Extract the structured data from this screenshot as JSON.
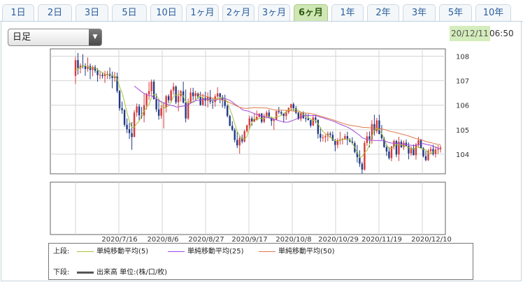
{
  "tabs": [
    {
      "label": "1日",
      "active": false
    },
    {
      "label": "2日",
      "active": false
    },
    {
      "label": "3日",
      "active": false
    },
    {
      "label": "5日",
      "active": false
    },
    {
      "label": "10日",
      "active": false
    },
    {
      "label": "1ヶ月",
      "active": false
    },
    {
      "label": "2ヶ月",
      "active": false
    },
    {
      "label": "3ヶ月",
      "active": false
    },
    {
      "label": "6ヶ月",
      "active": true
    },
    {
      "label": "1年",
      "active": false
    },
    {
      "label": "2年",
      "active": false
    },
    {
      "label": "3年",
      "active": false
    },
    {
      "label": "5年",
      "active": false
    },
    {
      "label": "10年",
      "active": false
    }
  ],
  "period_select": {
    "value": "日足"
  },
  "timestamp": {
    "date": "20/12/11",
    "time": "06:50"
  },
  "legend": {
    "upper_label": "上段:",
    "lower_label": "下段:",
    "ma5": "単純移動平均(5)",
    "ma25": "単純移動平均(25)",
    "ma50": "単純移動平均(50)",
    "volume": "出来高 単位:(株/口/枚)"
  },
  "colors": {
    "up": "#d83a3a",
    "down": "#1f3a86",
    "ma5": "#a8c23a",
    "ma25": "#a24ad9",
    "ma50": "#e07a4a",
    "volume": "#555555",
    "active_tab": "#cfe7b4"
  },
  "chart_data": {
    "type": "candlestick",
    "price_ticks": [
      104,
      105,
      106,
      107,
      108
    ],
    "ylim": [
      103.2,
      108.3
    ],
    "x_tick_labels": [
      "2020/7/16",
      "2020/8/6",
      "2020/8/27",
      "2020/9/17",
      "2020/10/8",
      "2020/10/29",
      "2020/11/19",
      "2020/12/10"
    ],
    "ohlc": [
      [
        107.2,
        107.98,
        106.86,
        107.84
      ],
      [
        107.84,
        108.13,
        107.25,
        107.51
      ],
      [
        107.51,
        107.71,
        107.3,
        107.62
      ],
      [
        107.62,
        108.08,
        107.5,
        107.61
      ],
      [
        107.61,
        107.71,
        107.2,
        107.48
      ],
      [
        107.48,
        107.95,
        107.37,
        107.6
      ],
      [
        107.6,
        107.7,
        107.06,
        107.44
      ],
      [
        107.44,
        107.62,
        107.18,
        107.56
      ],
      [
        107.56,
        107.64,
        107.32,
        107.41
      ],
      [
        107.41,
        107.51,
        106.96,
        107.23
      ],
      [
        107.23,
        107.41,
        107.06,
        107.24
      ],
      [
        107.24,
        107.33,
        107.09,
        107.19
      ],
      [
        107.19,
        107.4,
        106.91,
        107.28
      ],
      [
        107.28,
        107.4,
        107.07,
        107.28
      ],
      [
        107.28,
        107.54,
        107.06,
        107.19
      ],
      [
        107.19,
        107.37,
        106.69,
        107.11
      ],
      [
        107.11,
        107.36,
        106.96,
        107.17
      ],
      [
        107.17,
        107.33,
        106.5,
        106.58
      ],
      [
        106.58,
        106.62,
        105.78,
        105.88
      ],
      [
        105.88,
        106.15,
        105.65,
        105.8
      ],
      [
        105.8,
        105.84,
        105.12,
        105.2
      ],
      [
        105.2,
        105.46,
        104.86,
        105.02
      ],
      [
        105.02,
        105.28,
        104.62,
        104.86
      ],
      [
        104.86,
        105.31,
        104.18,
        104.7
      ],
      [
        104.7,
        105.8,
        104.7,
        105.7
      ],
      [
        105.7,
        106.07,
        105.54,
        105.95
      ],
      [
        105.95,
        106.05,
        105.39,
        105.59
      ],
      [
        105.59,
        105.93,
        105.45,
        105.58
      ],
      [
        105.58,
        106.47,
        105.3,
        106.0
      ],
      [
        106.0,
        106.5,
        105.82,
        106.45
      ],
      [
        106.45,
        106.95,
        106.21,
        106.58
      ],
      [
        106.58,
        107.05,
        106.41,
        106.96
      ],
      [
        106.96,
        107.05,
        106.24,
        106.24
      ],
      [
        106.24,
        106.48,
        105.72,
        105.83
      ],
      [
        105.83,
        106.22,
        105.41,
        105.57
      ],
      [
        105.57,
        106.0,
        105.45,
        105.88
      ],
      [
        105.88,
        106.12,
        105.05,
        105.9
      ],
      [
        105.9,
        106.42,
        105.7,
        106.37
      ],
      [
        106.37,
        106.45,
        106.08,
        106.2
      ],
      [
        106.2,
        106.66,
        106.11,
        106.6
      ],
      [
        106.6,
        106.92,
        106.43,
        106.76
      ],
      [
        106.76,
        106.81,
        106.05,
        106.12
      ],
      [
        106.12,
        106.62,
        105.75,
        106.37
      ],
      [
        106.37,
        106.62,
        106.15,
        106.57
      ],
      [
        106.57,
        106.96,
        106.07,
        106.11
      ],
      [
        106.11,
        106.64,
        105.3,
        105.46
      ],
      [
        105.46,
        106.27,
        105.4,
        106.09
      ],
      [
        106.09,
        106.71,
        106.07,
        106.52
      ],
      [
        106.52,
        106.71,
        106.2,
        106.37
      ],
      [
        106.37,
        106.59,
        106.2,
        106.48
      ],
      [
        106.48,
        106.52,
        106.26,
        106.34
      ],
      [
        106.34,
        106.55,
        105.98,
        106.01
      ],
      [
        106.01,
        106.47,
        105.97,
        106.3
      ],
      [
        106.3,
        106.55,
        105.96,
        106.19
      ],
      [
        106.19,
        106.53,
        105.91,
        106.34
      ],
      [
        106.34,
        106.62,
        106.05,
        106.14
      ],
      [
        106.14,
        106.26,
        105.85,
        106.13
      ],
      [
        106.13,
        106.45,
        105.94,
        106.36
      ],
      [
        106.36,
        106.73,
        106.31,
        106.48
      ],
      [
        106.48,
        106.51,
        106.08,
        106.34
      ],
      [
        106.34,
        106.42,
        105.9,
        106.22
      ],
      [
        106.22,
        106.43,
        105.86,
        105.97
      ],
      [
        105.97,
        106.03,
        105.5,
        105.56
      ],
      [
        105.56,
        105.61,
        105.14,
        105.16
      ],
      [
        105.16,
        105.35,
        104.94,
        104.99
      ],
      [
        104.99,
        105.07,
        104.48,
        104.58
      ],
      [
        104.58,
        104.93,
        104.25,
        104.36
      ],
      [
        104.36,
        104.75,
        104.02,
        104.66
      ],
      [
        104.66,
        104.8,
        104.44,
        104.52
      ],
      [
        104.52,
        105.01,
        104.48,
        104.94
      ],
      [
        104.94,
        105.21,
        104.88,
        105.18
      ],
      [
        105.18,
        105.57,
        105.02,
        105.46
      ],
      [
        105.46,
        105.55,
        105.16,
        105.33
      ],
      [
        105.33,
        105.67,
        105.31,
        105.43
      ],
      [
        105.43,
        105.78,
        105.37,
        105.52
      ],
      [
        105.52,
        105.67,
        105.5,
        105.66
      ],
      [
        105.66,
        105.68,
        105.26,
        105.32
      ],
      [
        105.32,
        105.66,
        105.27,
        105.56
      ],
      [
        105.56,
        105.78,
        105.46,
        105.7
      ],
      [
        105.7,
        105.82,
        105.46,
        105.51
      ],
      [
        105.51,
        105.52,
        105.16,
        105.36
      ],
      [
        105.36,
        105.46,
        104.99,
        105.41
      ],
      [
        105.41,
        105.77,
        105.39,
        105.76
      ],
      [
        105.76,
        105.93,
        105.64,
        105.72
      ],
      [
        105.72,
        105.78,
        105.59,
        105.66
      ],
      [
        105.66,
        105.69,
        105.29,
        105.56
      ],
      [
        105.56,
        105.81,
        105.4,
        105.71
      ],
      [
        105.71,
        105.91,
        105.63,
        105.89
      ],
      [
        105.89,
        106.06,
        105.79,
        106.04
      ],
      [
        106.04,
        106.11,
        105.77,
        105.88
      ],
      [
        105.88,
        105.97,
        105.63,
        105.69
      ],
      [
        105.69,
        105.72,
        105.4,
        105.44
      ],
      [
        105.44,
        105.71,
        105.34,
        105.67
      ],
      [
        105.67,
        105.75,
        105.45,
        105.47
      ],
      [
        105.47,
        105.66,
        105.32,
        105.46
      ],
      [
        105.46,
        105.64,
        105.38,
        105.39
      ],
      [
        105.39,
        105.4,
        105.09,
        105.17
      ],
      [
        105.17,
        105.6,
        105.15,
        105.5
      ],
      [
        105.5,
        105.6,
        105.26,
        105.4
      ],
      [
        105.4,
        105.42,
        104.64,
        104.83
      ],
      [
        104.83,
        105.1,
        104.5,
        104.67
      ],
      [
        104.67,
        104.81,
        104.52,
        104.69
      ],
      [
        104.69,
        104.81,
        104.48,
        104.73
      ],
      [
        104.73,
        104.93,
        104.53,
        104.84
      ],
      [
        104.84,
        104.92,
        104.67,
        104.79
      ],
      [
        104.79,
        104.93,
        104.55,
        104.55
      ],
      [
        104.55,
        104.62,
        104.12,
        104.38
      ],
      [
        104.38,
        104.66,
        104.24,
        104.57
      ],
      [
        104.57,
        104.92,
        104.39,
        104.6
      ],
      [
        104.6,
        104.66,
        104.4,
        104.63
      ],
      [
        104.63,
        104.83,
        104.58,
        104.74
      ],
      [
        104.74,
        104.92,
        104.37,
        104.59
      ],
      [
        104.59,
        104.66,
        104.48,
        104.52
      ],
      [
        104.52,
        104.69,
        104.4,
        104.45
      ],
      [
        104.45,
        104.53,
        104.04,
        104.09
      ],
      [
        104.09,
        104.38,
        103.66,
        103.88
      ],
      [
        103.88,
        104.16,
        103.48,
        103.61
      ],
      [
        103.61,
        103.69,
        103.2,
        103.37
      ],
      [
        103.37,
        104.55,
        103.33,
        104.46
      ],
      [
        104.46,
        104.91,
        104.34,
        104.73
      ],
      [
        104.73,
        104.93,
        104.28,
        104.62
      ],
      [
        104.62,
        105.39,
        104.42,
        105.23
      ],
      [
        105.23,
        105.61,
        104.76,
        104.94
      ],
      [
        104.94,
        105.48,
        104.85,
        105.38
      ],
      [
        105.38,
        105.61,
        104.82,
        104.82
      ],
      [
        104.82,
        105.19,
        104.58,
        104.65
      ],
      [
        104.65,
        104.71,
        104.26,
        104.29
      ],
      [
        104.29,
        104.41,
        103.93,
        104.11
      ],
      [
        104.11,
        104.29,
        103.78,
        103.84
      ],
      [
        103.84,
        104.34,
        103.71,
        104.31
      ],
      [
        104.31,
        104.6,
        104.19,
        104.54
      ],
      [
        104.54,
        104.59,
        103.88,
        103.99
      ],
      [
        103.99,
        104.71,
        103.72,
        104.51
      ],
      [
        104.51,
        104.59,
        104.26,
        104.28
      ],
      [
        104.28,
        104.56,
        104.17,
        104.47
      ],
      [
        104.47,
        104.6,
        104.31,
        104.34
      ],
      [
        104.34,
        104.48,
        103.79,
        104.03
      ],
      [
        104.03,
        104.33,
        103.93,
        104.25
      ],
      [
        104.25,
        104.4,
        103.95,
        103.96
      ],
      [
        103.96,
        104.46,
        103.78,
        104.4
      ],
      [
        104.4,
        104.71,
        104.26,
        104.57
      ],
      [
        104.57,
        104.63,
        104.22,
        104.24
      ],
      [
        104.24,
        104.29,
        103.87,
        103.92
      ],
      [
        103.92,
        104.13,
        103.71,
        103.76
      ],
      [
        103.76,
        104.21,
        103.72,
        104.13
      ],
      [
        104.13,
        104.31,
        104.0,
        104.21
      ],
      [
        104.21,
        104.39,
        103.94,
        104.01
      ],
      [
        104.01,
        104.32,
        103.86,
        104.19
      ],
      [
        104.19,
        104.37,
        104.01,
        104.21
      ],
      [
        104.21,
        104.36,
        104.07,
        104.27
      ]
    ],
    "ma5": [
      107.41,
      107.48,
      107.55,
      107.6,
      107.61,
      107.57,
      107.54,
      107.54,
      107.52,
      107.45,
      107.38,
      107.33,
      107.27,
      107.24,
      107.24,
      107.21,
      107.21,
      107.06,
      106.75,
      106.51,
      106.13,
      105.7,
      105.35,
      105.09,
      105.1,
      105.25,
      105.36,
      105.59,
      105.77,
      105.91,
      106.03,
      106.31,
      106.44,
      106.41,
      106.24,
      106.1,
      105.86,
      105.91,
      105.98,
      106.11,
      106.37,
      106.41,
      106.41,
      106.48,
      106.38,
      106.13,
      106.12,
      106.15,
      106.11,
      106.19,
      106.36,
      106.35,
      106.3,
      106.25,
      106.24,
      106.2,
      106.22,
      106.23,
      106.29,
      106.29,
      106.31,
      106.27,
      106.11,
      105.85,
      105.58,
      105.25,
      104.93,
      104.75,
      104.62,
      104.61,
      104.73,
      105.01,
      105.29,
      105.47,
      105.38,
      105.48,
      105.45,
      105.46,
      105.55,
      105.55,
      105.49,
      105.47,
      105.55,
      105.55,
      105.58,
      105.68,
      105.72,
      105.81,
      105.82,
      105.83,
      105.84,
      105.79,
      105.72,
      105.63,
      105.55,
      105.49,
      105.43,
      105.38,
      105.39,
      105.25,
      105.07,
      104.92,
      104.85,
      104.77,
      104.68,
      104.62,
      104.55,
      104.56,
      104.56,
      104.6,
      104.61,
      104.62,
      104.59,
      104.45,
      104.28,
      104.07,
      103.86,
      103.91,
      104.07,
      104.16,
      104.38,
      104.73,
      104.98,
      105.04,
      105.01,
      104.85,
      104.65,
      104.38,
      104.24,
      104.24,
      104.3,
      104.39,
      104.4,
      104.39,
      104.32,
      104.32,
      104.26,
      104.2,
      104.21,
      104.29,
      104.3,
      104.24,
      104.2,
      104.18,
      104.04,
      104.01,
      104.09,
      104.11
    ]
  }
}
